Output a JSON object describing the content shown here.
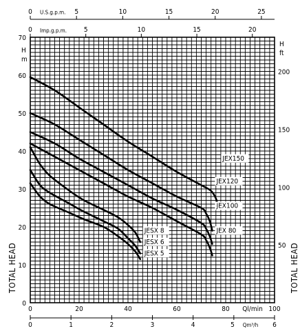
{
  "chart_data": {
    "type": "line",
    "axes": {
      "x_bottom": {
        "label": "Ql/min",
        "ticks": [
          "0",
          "20",
          "40",
          "60",
          "80",
          "100"
        ],
        "range": [
          0,
          100
        ]
      },
      "x_bottom_secondary": {
        "label": "Qm³/h",
        "ticks": [
          "0",
          "1",
          "2",
          "3",
          "4",
          "5",
          "6"
        ],
        "range": [
          0,
          6
        ]
      },
      "x_top_usgpm": {
        "label": "U.S.g.p.m.",
        "ticks": [
          "0",
          "5",
          "10",
          "15",
          "20",
          "25"
        ],
        "range": [
          0,
          26.42
        ]
      },
      "x_top_impgpm": {
        "label": "Imp.g.p.m.",
        "ticks": [
          "0",
          "5",
          "10",
          "15",
          "20"
        ],
        "range": [
          0,
          22
        ]
      },
      "y_left": {
        "label": "TOTAL HEAD",
        "unit_lines": [
          "H",
          "m"
        ],
        "ticks": [
          "0",
          "10",
          "20",
          "30",
          "40",
          "50",
          "60",
          "70"
        ],
        "range": [
          0,
          70
        ]
      },
      "y_right": {
        "label": "TOTAL HEAD",
        "unit_lines": [
          "H",
          "ft"
        ],
        "ticks": [
          "50",
          "100",
          "150",
          "200"
        ],
        "range": [
          0,
          229.66
        ]
      }
    },
    "grid": true,
    "series": [
      {
        "name": "JEX150",
        "label_y": 37.5,
        "points": [
          [
            0,
            59.5
          ],
          [
            10,
            56
          ],
          [
            20,
            51.5
          ],
          [
            30,
            47
          ],
          [
            40,
            42.5
          ],
          [
            50,
            38.5
          ],
          [
            60,
            34.5
          ],
          [
            70,
            31
          ],
          [
            74,
            29.5
          ],
          [
            76,
            27.5
          ],
          [
            77,
            25
          ]
        ]
      },
      {
        "name": "JEX120",
        "label_y": 31.5,
        "points": [
          [
            0,
            50
          ],
          [
            10,
            47
          ],
          [
            20,
            43
          ],
          [
            30,
            39
          ],
          [
            40,
            35
          ],
          [
            50,
            31.5
          ],
          [
            60,
            28
          ],
          [
            70,
            25
          ],
          [
            72,
            23.5
          ],
          [
            73.5,
            21.5
          ],
          [
            74.5,
            19
          ]
        ]
      },
      {
        "name": "JEX100",
        "label_y": 25,
        "points": [
          [
            0,
            45
          ],
          [
            10,
            42
          ],
          [
            20,
            38
          ],
          [
            30,
            34.5
          ],
          [
            40,
            31
          ],
          [
            50,
            27.5
          ],
          [
            60,
            24.5
          ],
          [
            70,
            21
          ],
          [
            72,
            19.5
          ],
          [
            73.5,
            17.5
          ],
          [
            74.5,
            15.5
          ]
        ]
      },
      {
        "name": "JEX 80",
        "label_y": 18.5,
        "points": [
          [
            0,
            42
          ],
          [
            10,
            38.5
          ],
          [
            20,
            35
          ],
          [
            30,
            31.5
          ],
          [
            40,
            28
          ],
          [
            50,
            25
          ],
          [
            60,
            21.5
          ],
          [
            70,
            18
          ],
          [
            72,
            16.5
          ],
          [
            73.5,
            14.5
          ],
          [
            74.5,
            12.5
          ]
        ]
      },
      {
        "name": "JESX 8",
        "label_y": 18.5,
        "points": [
          [
            0,
            41
          ],
          [
            4,
            36.5
          ],
          [
            8,
            33.5
          ],
          [
            15,
            30
          ],
          [
            22,
            27
          ],
          [
            30,
            24.5
          ],
          [
            36,
            22.5
          ],
          [
            40,
            20.5
          ],
          [
            43,
            18.5
          ],
          [
            45,
            16
          ]
        ]
      },
      {
        "name": "JESX 6",
        "label_y": 15.5,
        "points": [
          [
            0,
            35
          ],
          [
            4,
            31
          ],
          [
            8,
            29
          ],
          [
            15,
            26.5
          ],
          [
            22,
            24
          ],
          [
            30,
            21.5
          ],
          [
            36,
            19.5
          ],
          [
            40,
            17
          ],
          [
            43,
            15
          ],
          [
            45,
            13
          ]
        ]
      },
      {
        "name": "JESX 5",
        "label_y": 12.5,
        "points": [
          [
            0,
            31.5
          ],
          [
            4,
            28
          ],
          [
            8,
            26
          ],
          [
            15,
            24
          ],
          [
            22,
            22
          ],
          [
            30,
            20
          ],
          [
            36,
            17.5
          ],
          [
            40,
            15.5
          ],
          [
            43,
            13.5
          ],
          [
            45,
            11.5
          ]
        ]
      }
    ]
  }
}
